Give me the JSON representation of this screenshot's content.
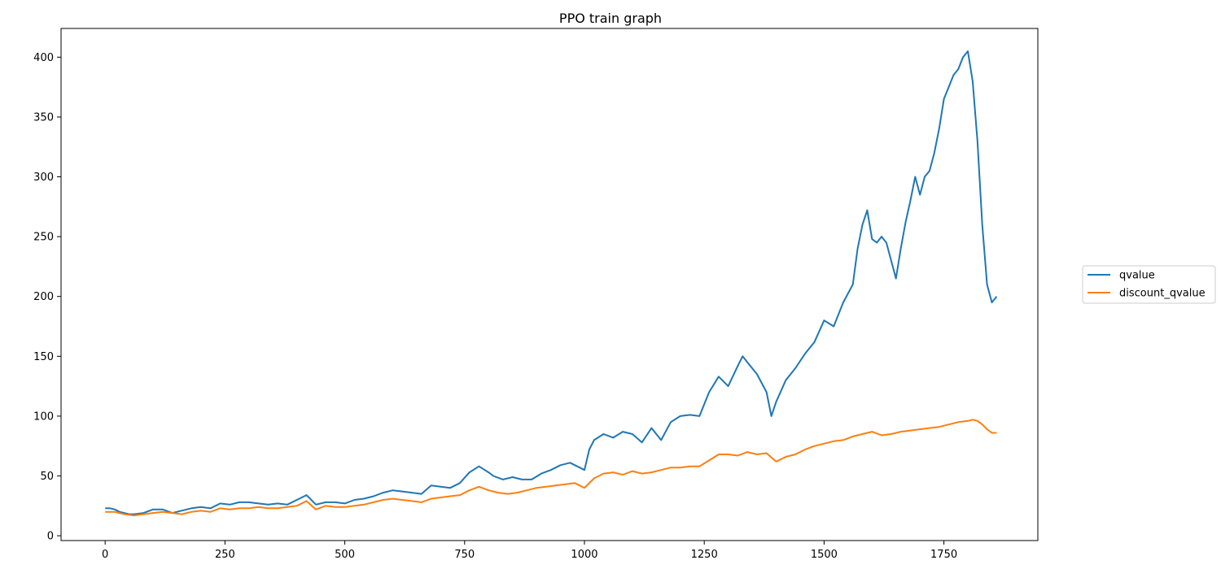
{
  "chart_data": {
    "type": "line",
    "title": "PPO train graph",
    "xlabel": "",
    "ylabel": "",
    "xlim": [
      -92,
      1946
    ],
    "ylim": [
      -4,
      424
    ],
    "xticks": [
      0,
      250,
      500,
      750,
      1000,
      1250,
      1500,
      1750
    ],
    "yticks": [
      0,
      50,
      100,
      150,
      200,
      250,
      300,
      350,
      400
    ],
    "grid": false,
    "legend_position": "right",
    "series": [
      {
        "name": "qvalue",
        "color": "#1f77b4",
        "x": [
          0,
          10,
          20,
          30,
          40,
          50,
          60,
          80,
          100,
          120,
          140,
          160,
          180,
          200,
          220,
          240,
          260,
          280,
          300,
          320,
          340,
          360,
          380,
          400,
          420,
          440,
          460,
          480,
          500,
          520,
          540,
          560,
          580,
          600,
          620,
          640,
          660,
          680,
          700,
          720,
          740,
          760,
          780,
          800,
          810,
          830,
          850,
          870,
          890,
          910,
          930,
          950,
          970,
          990,
          1000,
          1010,
          1020,
          1040,
          1060,
          1080,
          1100,
          1120,
          1140,
          1160,
          1180,
          1200,
          1220,
          1240,
          1260,
          1280,
          1300,
          1320,
          1330,
          1340,
          1360,
          1380,
          1390,
          1400,
          1420,
          1440,
          1460,
          1480,
          1500,
          1520,
          1540,
          1560,
          1570,
          1580,
          1590,
          1600,
          1610,
          1620,
          1630,
          1640,
          1650,
          1660,
          1670,
          1680,
          1690,
          1700,
          1710,
          1720,
          1730,
          1740,
          1750,
          1760,
          1770,
          1780,
          1790,
          1800,
          1810,
          1820,
          1830,
          1840,
          1850,
          1860
        ],
        "values": [
          23,
          23,
          22,
          20,
          19,
          18,
          18,
          19,
          22,
          22,
          19,
          21,
          23,
          24,
          23,
          27,
          26,
          28,
          28,
          27,
          26,
          27,
          26,
          30,
          34,
          26,
          28,
          28,
          27,
          30,
          31,
          33,
          36,
          38,
          37,
          36,
          35,
          42,
          41,
          40,
          44,
          53,
          58,
          53,
          50,
          47,
          49,
          47,
          47,
          52,
          55,
          59,
          61,
          57,
          55,
          72,
          80,
          85,
          82,
          87,
          85,
          78,
          90,
          80,
          95,
          100,
          101,
          100,
          120,
          133,
          125,
          142,
          150,
          145,
          135,
          120,
          100,
          112,
          130,
          140,
          152,
          162,
          180,
          175,
          195,
          210,
          240,
          260,
          272,
          248,
          245,
          250,
          245,
          230,
          215,
          240,
          262,
          280,
          300,
          285,
          300,
          305,
          320,
          340,
          365,
          375,
          385,
          390,
          400,
          405,
          380,
          330,
          260,
          210,
          195,
          200
        ]
      },
      {
        "name": "discount_qvalue",
        "color": "#ff7f0e",
        "x": [
          0,
          20,
          40,
          60,
          80,
          100,
          120,
          140,
          160,
          180,
          200,
          220,
          240,
          260,
          280,
          300,
          320,
          340,
          360,
          380,
          400,
          420,
          440,
          460,
          480,
          500,
          520,
          540,
          560,
          580,
          600,
          620,
          640,
          660,
          680,
          700,
          720,
          740,
          760,
          780,
          800,
          820,
          840,
          860,
          880,
          900,
          920,
          940,
          960,
          980,
          1000,
          1020,
          1040,
          1060,
          1080,
          1100,
          1120,
          1140,
          1160,
          1180,
          1200,
          1220,
          1240,
          1260,
          1280,
          1300,
          1320,
          1340,
          1360,
          1380,
          1400,
          1420,
          1440,
          1460,
          1480,
          1500,
          1520,
          1540,
          1560,
          1580,
          1600,
          1620,
          1640,
          1660,
          1680,
          1700,
          1720,
          1740,
          1760,
          1780,
          1800,
          1810,
          1820,
          1830,
          1840,
          1850,
          1860
        ],
        "values": [
          20,
          20,
          18,
          17,
          18,
          19,
          20,
          19,
          18,
          20,
          21,
          20,
          23,
          22,
          23,
          23,
          24,
          23,
          23,
          24,
          25,
          29,
          22,
          25,
          24,
          24,
          25,
          26,
          28,
          30,
          31,
          30,
          29,
          28,
          31,
          32,
          33,
          34,
          38,
          41,
          38,
          36,
          35,
          36,
          38,
          40,
          41,
          42,
          43,
          44,
          40,
          48,
          52,
          53,
          51,
          54,
          52,
          53,
          55,
          57,
          57,
          58,
          58,
          63,
          68,
          68,
          67,
          70,
          68,
          69,
          62,
          66,
          68,
          72,
          75,
          77,
          79,
          80,
          83,
          85,
          87,
          84,
          85,
          87,
          88,
          89,
          90,
          91,
          93,
          95,
          96,
          97,
          96,
          93,
          89,
          86,
          86
        ]
      }
    ]
  }
}
